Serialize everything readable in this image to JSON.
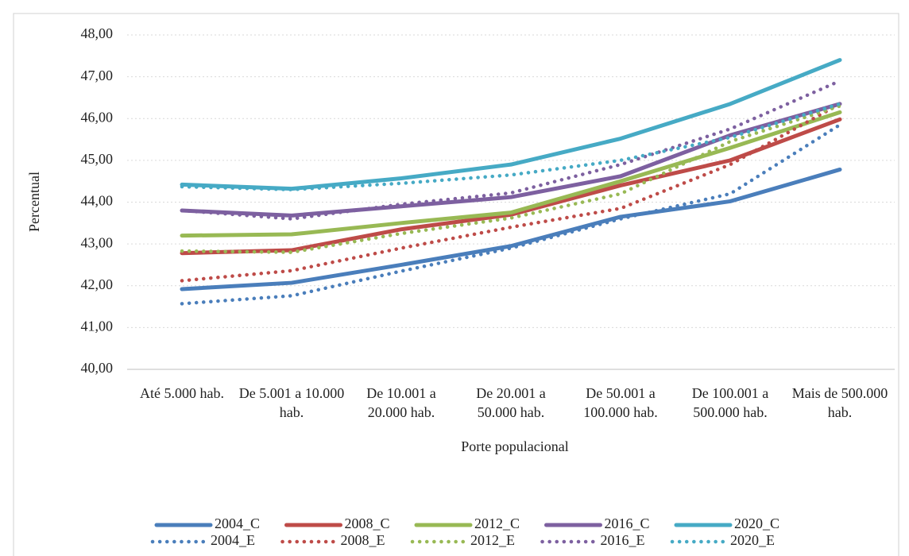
{
  "chart_data": {
    "type": "line",
    "x_label": "Porte populacional",
    "y_label": "Percentual",
    "categories": [
      "Até 5.000 hab.",
      "De 5.001 a 10.000 hab.",
      "De 10.001 a 20.000 hab.",
      "De 20.001 a 50.000 hab.",
      "De 50.001 a 100.000 hab.",
      "De 100.001 a 500.000 hab.",
      "Mais de 500.000 hab."
    ],
    "ylim": [
      40,
      48
    ],
    "yticks": [
      {
        "value": 40,
        "label": "40,00"
      },
      {
        "value": 41,
        "label": "41,00"
      },
      {
        "value": 42,
        "label": "42,00"
      },
      {
        "value": 43,
        "label": "43,00"
      },
      {
        "value": 44,
        "label": "44,00"
      },
      {
        "value": 45,
        "label": "45,00"
      },
      {
        "value": 46,
        "label": "46,00"
      },
      {
        "value": 47,
        "label": "47,00"
      },
      {
        "value": 48,
        "label": "48,00"
      }
    ],
    "grid": true,
    "legend": "bottom",
    "series": [
      {
        "name": "2004_C",
        "color": "#4a7ebb",
        "style": "solid",
        "values": [
          41.92,
          42.07,
          42.5,
          42.95,
          43.65,
          44.02,
          44.78
        ]
      },
      {
        "name": "2008_C",
        "color": "#be4b48",
        "style": "solid",
        "values": [
          42.78,
          42.85,
          43.35,
          43.7,
          44.4,
          45.0,
          45.98
        ]
      },
      {
        "name": "2012_C",
        "color": "#98b954",
        "style": "solid",
        "values": [
          43.2,
          43.23,
          43.5,
          43.75,
          44.5,
          45.3,
          46.15
        ]
      },
      {
        "name": "2016_C",
        "color": "#7d60a0",
        "style": "solid",
        "values": [
          43.8,
          43.68,
          43.9,
          44.12,
          44.62,
          45.6,
          46.35
        ]
      },
      {
        "name": "2020_C",
        "color": "#46aac5",
        "style": "solid",
        "values": [
          44.42,
          44.32,
          44.57,
          44.9,
          45.52,
          46.35,
          47.4
        ]
      },
      {
        "name": "2004_E",
        "color": "#4a7ebb",
        "style": "dotted",
        "values": [
          41.57,
          41.76,
          42.35,
          42.9,
          43.6,
          44.2,
          45.85
        ]
      },
      {
        "name": "2008_E",
        "color": "#be4b48",
        "style": "dotted",
        "values": [
          42.12,
          42.36,
          42.9,
          43.4,
          43.85,
          44.9,
          46.35
        ]
      },
      {
        "name": "2012_E",
        "color": "#98b954",
        "style": "dotted",
        "values": [
          42.83,
          42.8,
          43.25,
          43.62,
          44.2,
          45.45,
          46.3
        ]
      },
      {
        "name": "2016_E",
        "color": "#7d60a0",
        "style": "dotted",
        "values": [
          43.8,
          43.6,
          43.95,
          44.22,
          44.9,
          45.75,
          46.9
        ]
      },
      {
        "name": "2020_E",
        "color": "#46aac5",
        "style": "dotted",
        "values": [
          44.37,
          44.3,
          44.45,
          44.65,
          45.0,
          45.55,
          46.35
        ]
      }
    ]
  }
}
